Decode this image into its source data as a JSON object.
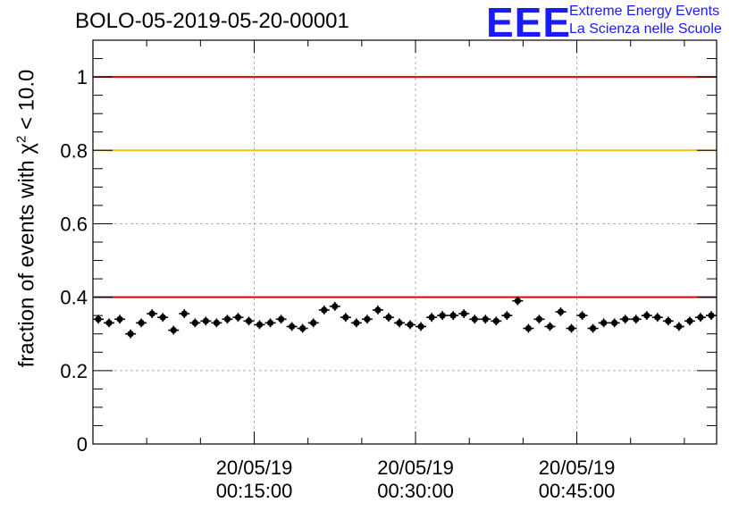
{
  "title": "BOLO-05-2019-05-20-00001",
  "logo": {
    "mark": "EEE",
    "line1": "Extreme Energy Events",
    "line2": "La Scienza nelle Scuole",
    "color": "#1a1aff"
  },
  "chart_data": {
    "type": "scatter",
    "title": "BOLO-05-2019-05-20-00001",
    "ylabel_prefix": "fraction of events with χ",
    "ylabel_sup": "2",
    "ylabel_suffix": " < 10.0",
    "xlabel": "",
    "ylim": [
      0,
      1.1
    ],
    "xlim_minutes": [
      0,
      58
    ],
    "grid": true,
    "y_ticks": [
      {
        "value": 0,
        "label": "0"
      },
      {
        "value": 0.2,
        "label": "0.2"
      },
      {
        "value": 0.4,
        "label": "0.4"
      },
      {
        "value": 0.6,
        "label": "0.6"
      },
      {
        "value": 0.8,
        "label": "0.8"
      },
      {
        "value": 1,
        "label": "1"
      }
    ],
    "x_ticks": [
      {
        "minutes": 15,
        "date": "20/05/19",
        "time": "00:15:00"
      },
      {
        "minutes": 30,
        "date": "20/05/19",
        "time": "00:30:00"
      },
      {
        "minutes": 45,
        "date": "20/05/19",
        "time": "00:45:00"
      }
    ],
    "reference_lines": [
      {
        "y": 1.0,
        "color": "#e00000"
      },
      {
        "y": 0.8,
        "color": "#f5c000"
      },
      {
        "y": 0.4,
        "color": "#e00000"
      }
    ],
    "series": [
      {
        "marker_color": "#000000",
        "x_minutes": [
          0.5,
          1.5,
          2.5,
          3.5,
          4.5,
          5.5,
          6.5,
          7.5,
          8.5,
          9.5,
          10.5,
          11.5,
          12.5,
          13.5,
          14.5,
          15.5,
          16.5,
          17.5,
          18.5,
          19.5,
          20.5,
          21.5,
          22.5,
          23.5,
          24.5,
          25.5,
          26.5,
          27.5,
          28.5,
          29.5,
          30.5,
          31.5,
          32.5,
          33.5,
          34.5,
          35.5,
          36.5,
          37.5,
          38.5,
          39.5,
          40.5,
          41.5,
          42.5,
          43.5,
          44.5,
          45.5,
          46.5,
          47.5,
          48.5,
          49.5,
          50.5,
          51.5,
          52.5,
          53.5,
          54.5,
          55.5,
          56.5,
          57.5
        ],
        "y": [
          0.34,
          0.33,
          0.34,
          0.3,
          0.33,
          0.355,
          0.345,
          0.31,
          0.355,
          0.33,
          0.335,
          0.33,
          0.34,
          0.345,
          0.335,
          0.325,
          0.33,
          0.34,
          0.32,
          0.315,
          0.33,
          0.365,
          0.375,
          0.345,
          0.33,
          0.34,
          0.365,
          0.345,
          0.33,
          0.325,
          0.32,
          0.345,
          0.35,
          0.35,
          0.355,
          0.34,
          0.34,
          0.335,
          0.35,
          0.39,
          0.315,
          0.34,
          0.32,
          0.36,
          0.315,
          0.35,
          0.315,
          0.33,
          0.33,
          0.34,
          0.34,
          0.35,
          0.345,
          0.335,
          0.32,
          0.335,
          0.345,
          0.35
        ],
        "y_err": 0.012
      }
    ]
  }
}
